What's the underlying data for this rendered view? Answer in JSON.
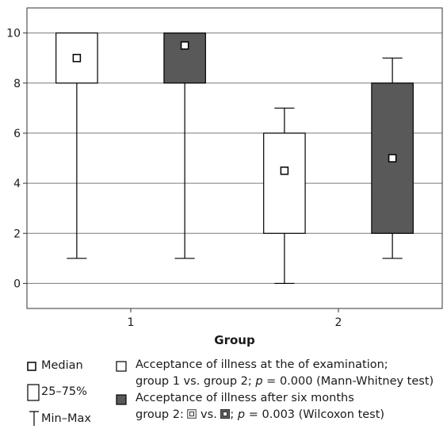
{
  "chart_data": {
    "type": "box",
    "title": "",
    "xlabel": "Group",
    "ylabel": "",
    "ylim": [
      -1,
      11
    ],
    "yticks": [
      0,
      2,
      4,
      6,
      8,
      10
    ],
    "grid": true,
    "categories": [
      "1",
      "2"
    ],
    "series": [
      {
        "name": "Acceptance of illness at the of examination",
        "color": "#ffffff",
        "boxes": [
          {
            "group": "1",
            "min": 1,
            "q1": 8,
            "median": 9,
            "q3": 10,
            "max": 10
          },
          {
            "group": "2",
            "min": 0,
            "q1": 2,
            "median": 4.5,
            "q3": 6,
            "max": 7
          }
        ]
      },
      {
        "name": "Acceptance of illness after six  months",
        "color": "#595959",
        "boxes": [
          {
            "group": "1",
            "min": 1,
            "q1": 8,
            "median": 9.5,
            "q3": 10,
            "max": 10
          },
          {
            "group": "2",
            "min": 1,
            "q1": 2,
            "median": 5,
            "q3": 8,
            "max": 9
          }
        ]
      }
    ]
  },
  "legend": {
    "median_label": "Median",
    "box_label": "25–75%",
    "whisker_label": "Min–Max",
    "series1_line1": "Acceptance of illness at the of examination;",
    "series1_line2_a": "group 1 vs. group 2; ",
    "series1_line2_p": "p",
    "series1_line2_b": " = 0.000 (Mann-Whitney test)",
    "series2_line1": "Acceptance of illness after six  months",
    "series2_line2_a": "group 2: ",
    "series2_line2_vs": " vs. ",
    "series2_line2_sep": "; ",
    "series2_line2_p": "p",
    "series2_line2_b": " = 0.003 (Wilcoxon test)"
  }
}
